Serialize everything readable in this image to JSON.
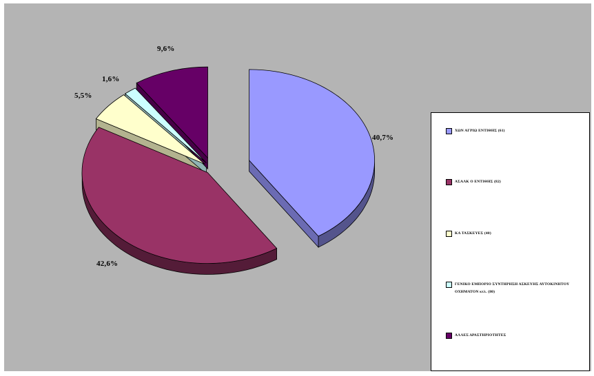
{
  "chart_data": {
    "type": "pie",
    "style": "3d-exploded",
    "slices": [
      {
        "label": "ΧΩΝ ΑΓΡΙΩ ΕΝΤΙΘΗΣ (61)",
        "value": 40.7,
        "value_label": "40,7%",
        "color": "#9999ff"
      },
      {
        "label": "ΑΣΑΛΚ Ο ΕΝΤΙΘΗΣ (82)",
        "value": 42.6,
        "value_label": "42,6%",
        "color": "#993366"
      },
      {
        "label": "ΚΑ ΤΑΣΚΕΥΕΣ (40)",
        "value": 5.5,
        "value_label": "5,5%",
        "color": "#ffffcc"
      },
      {
        "label": "ΓΕΝΙΚΟ ΕΜΠΟΡΙΟ ΣΥΝΤΗΡΗΣΗ ΑΣΚΕΥΗΣ ΑΥΤΟΚΙΝΗΤΟΥ ΟΧΗΜΑΤΟΝ κτλ. (80)",
        "value": 1.6,
        "value_label": "1,6%",
        "color": "#ccffff"
      },
      {
        "label": "ΑΛΛΕΣ ΔΡΑΣΤΗΡΙΟΤΗΤΕΣ",
        "value": 9.6,
        "value_label": "9,6%",
        "color": "#660066"
      }
    ],
    "legend_position": "right",
    "background_color": "#b4b4b4"
  }
}
